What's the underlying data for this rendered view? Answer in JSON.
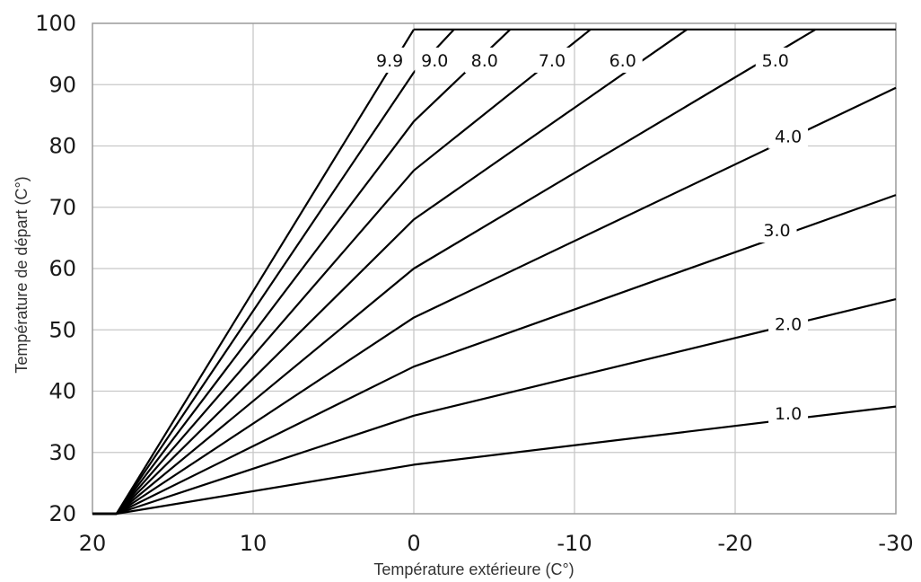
{
  "chart_data": {
    "type": "line",
    "title": "",
    "xlabel": "Température extérieure (C°)",
    "ylabel": "Température de départ (C°)",
    "xlim": [
      20,
      -30
    ],
    "ylim": [
      20,
      100
    ],
    "x_ticks": [
      "20",
      "10",
      "0",
      "-10",
      "-20",
      "-30"
    ],
    "y_ticks": [
      "20",
      "30",
      "40",
      "50",
      "60",
      "70",
      "80",
      "90",
      "100"
    ],
    "grid": true,
    "legend": "none",
    "max_flow_temperature": 99,
    "series": [
      {
        "name": "1.0",
        "x": [
          20,
          18.5,
          0,
          -30
        ],
        "y": [
          20,
          20,
          28,
          37.5
        ]
      },
      {
        "name": "2.0",
        "x": [
          20,
          18.5,
          0,
          -30
        ],
        "y": [
          20,
          20,
          36,
          55
        ]
      },
      {
        "name": "3.0",
        "x": [
          20,
          18.5,
          0,
          -30
        ],
        "y": [
          20,
          20,
          44,
          72
        ]
      },
      {
        "name": "4.0",
        "x": [
          20,
          18.5,
          0,
          -30
        ],
        "y": [
          20,
          20,
          52,
          89.5
        ]
      },
      {
        "name": "5.0",
        "x": [
          20,
          18.5,
          0,
          -25
        ],
        "y": [
          20,
          20,
          60,
          99
        ]
      },
      {
        "name": "6.0",
        "x": [
          20,
          18.5,
          0,
          -17
        ],
        "y": [
          20,
          20,
          68,
          99
        ]
      },
      {
        "name": "7.0",
        "x": [
          20,
          18.5,
          0,
          -11
        ],
        "y": [
          20,
          20,
          76,
          99
        ]
      },
      {
        "name": "8.0",
        "x": [
          20,
          18.5,
          0,
          -6
        ],
        "y": [
          20,
          20,
          84,
          99
        ]
      },
      {
        "name": "9.0",
        "x": [
          20,
          18.5,
          0,
          -2.5
        ],
        "y": [
          20,
          20,
          92,
          99
        ]
      },
      {
        "name": "9.9",
        "x": [
          20,
          18.5,
          0
        ],
        "y": [
          20,
          20,
          99
        ]
      }
    ],
    "annotations": [
      {
        "text": "9.9",
        "x": 1.5,
        "y": 94
      },
      {
        "text": "9.0",
        "x": -1.3,
        "y": 94
      },
      {
        "text": "8.0",
        "x": -4.4,
        "y": 94
      },
      {
        "text": "7.0",
        "x": -8.6,
        "y": 94
      },
      {
        "text": "6.0",
        "x": -13.0,
        "y": 94
      },
      {
        "text": "5.0",
        "x": -22.5,
        "y": 94
      },
      {
        "text": "4.0",
        "x": -23.3,
        "y": 81.6
      },
      {
        "text": "3.0",
        "x": -22.6,
        "y": 66.3
      },
      {
        "text": "2.0",
        "x": -23.3,
        "y": 51
      },
      {
        "text": "1.0",
        "x": -23.3,
        "y": 36.4
      }
    ]
  }
}
